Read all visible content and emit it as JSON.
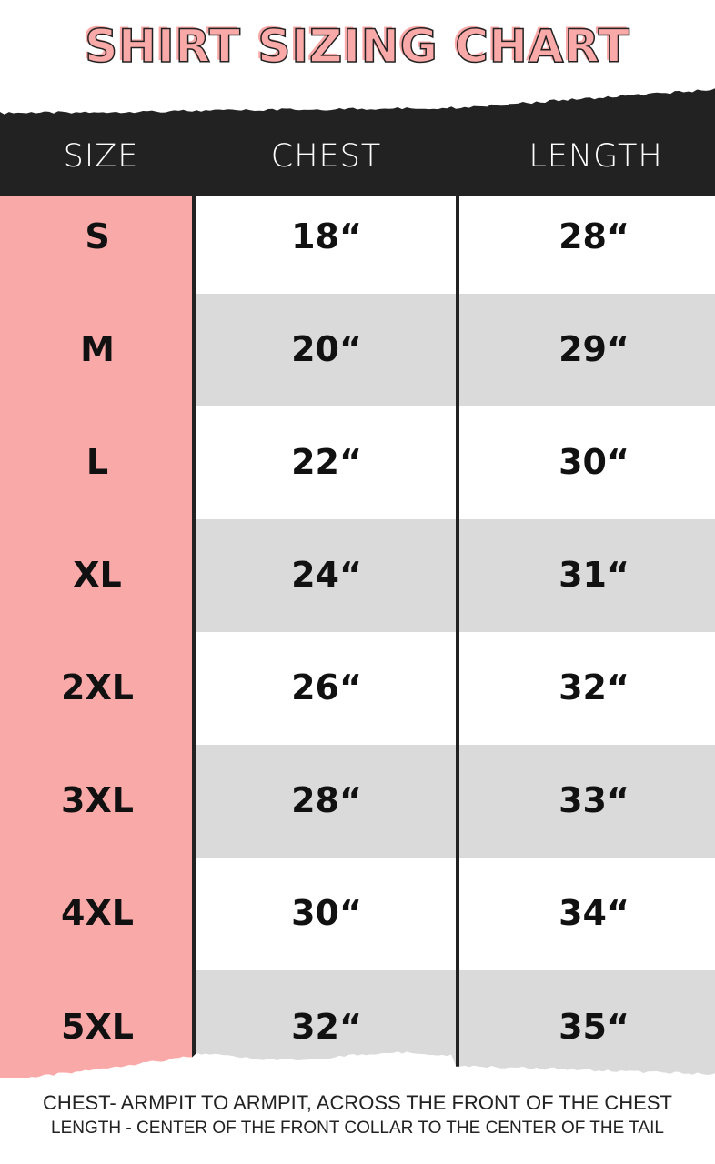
{
  "title": "SHIRT SIZING CHART",
  "colors": {
    "pink": "#f9a9a7",
    "dark": "#222222",
    "grey": "#dadada"
  },
  "table": {
    "headers": [
      "SIZE",
      "CHEST",
      "LENGTH"
    ],
    "rows": [
      {
        "size": "S",
        "chest": "18“",
        "length": "28“"
      },
      {
        "size": "M",
        "chest": "20“",
        "length": "29“"
      },
      {
        "size": "L",
        "chest": "22“",
        "length": "30“"
      },
      {
        "size": "XL",
        "chest": "24“",
        "length": "31“"
      },
      {
        "size": "2XL",
        "chest": "26“",
        "length": "32“"
      },
      {
        "size": "3XL",
        "chest": "28“",
        "length": "33“"
      },
      {
        "size": "4XL",
        "chest": "30“",
        "length": "34“"
      },
      {
        "size": "5XL",
        "chest": "32“",
        "length": "35“"
      }
    ]
  },
  "notes": [
    "CHEST- ARMPIT TO ARMPIT, ACROSS THE FRONT OF THE CHEST",
    "LENGTH - CENTER OF THE FRONT COLLAR TO THE CENTER OF THE TAIL"
  ]
}
